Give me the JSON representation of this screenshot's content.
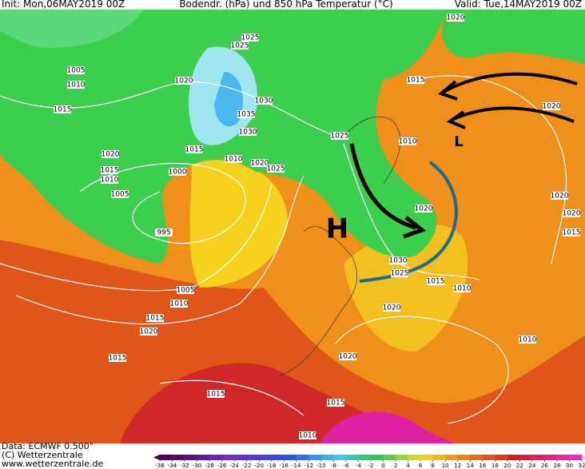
{
  "header": {
    "init": "Init: Mon,06MAY2019 00Z",
    "title": "Bodendr. (hPa) und 850 hPa Temperatur (°C)",
    "valid": "Valid: Tue,14MAY2019 00Z"
  },
  "map": {
    "high": "H",
    "low": "L",
    "isobars": [
      1020,
      1025,
      1025,
      1005,
      1010,
      1015,
      1020,
      1030,
      1035,
      1030,
      1015,
      1020,
      1025,
      1010,
      1020,
      1015,
      1010,
      1000,
      1005,
      1015,
      1010,
      1020,
      1025,
      995,
      1020,
      1020,
      1020,
      1015,
      1030,
      1025,
      1015,
      1010,
      1005,
      1010,
      1015,
      1020,
      1020,
      1010,
      1020,
      1015,
      1015,
      1015,
      1010
    ]
  },
  "footer": {
    "data": "Data: ECMWF  0.500°",
    "copyright": "(C) Wetterzentrale",
    "url": "www.wetterzentrale.de"
  },
  "colorbar": {
    "ticks": [
      -36,
      -34,
      -32,
      -30,
      -28,
      -26,
      -24,
      -22,
      -20,
      -18,
      -16,
      -14,
      -12,
      -10,
      -8,
      -6,
      -4,
      -2,
      0,
      2,
      4,
      6,
      8,
      10,
      12,
      14,
      16,
      18,
      20,
      22,
      24,
      26,
      28,
      30,
      32
    ]
  }
}
